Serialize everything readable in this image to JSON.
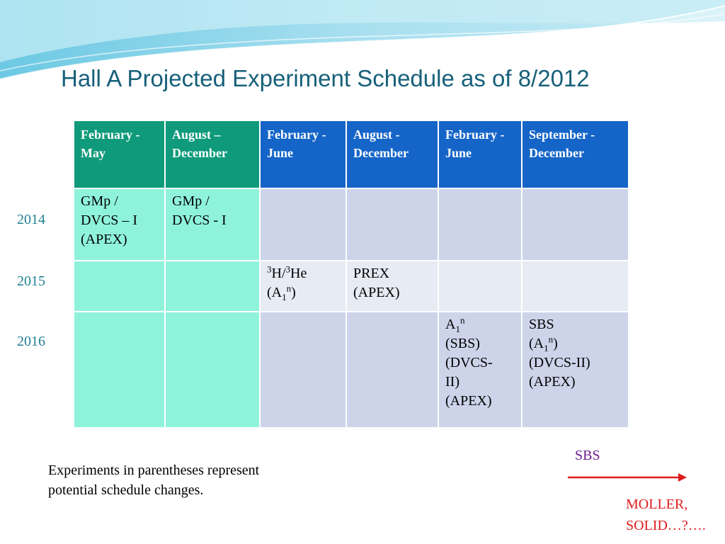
{
  "slide": {
    "title": "Hall A Projected Experiment Schedule as of 8/2012",
    "years": [
      "2014",
      "2015",
      "2016"
    ]
  },
  "table": {
    "headers": [
      "February - May",
      "August – December",
      "February - June",
      "August - December",
      "February - June",
      "September - December"
    ],
    "header_colors": [
      "#0f9a7b",
      "#0f9a7b",
      "#1565c8",
      "#1565c8",
      "#1565c8",
      "#1565c8"
    ],
    "rows": [
      {
        "year": "2014",
        "cells": [
          [
            "GMp /",
            "DVCS – I",
            "(APEX)"
          ],
          [
            "GMp /",
            "DVCS - I"
          ],
          [],
          [],
          [],
          []
        ]
      },
      {
        "year": "2015",
        "cells": [
          [],
          [],
          [
            "3H/3He",
            "(A1n)"
          ],
          [
            "PREX",
            "(APEX)"
          ],
          [],
          []
        ]
      },
      {
        "year": "2016",
        "cells": [
          [],
          [],
          [],
          [],
          [
            "A1n",
            "(SBS)",
            "(DVCS-II)",
            "(APEX)"
          ],
          [
            "SBS",
            "(A1n)",
            "(DVCS-II)",
            "(APEX)"
          ]
        ]
      }
    ]
  },
  "note": {
    "line1": "Experiments in parentheses represent",
    "line2": "potential schedule changes."
  },
  "timeline": {
    "sbs_label": "SBS",
    "next_line1": "MOLLER,",
    "next_line2": "SOLID…?…."
  },
  "colors": {
    "title": "#17607a",
    "year": "#1f7f91",
    "mint_cell": "#8ff3dc",
    "lavender_cell": "#cdd4ea",
    "light_cell": "#e7ebf4",
    "sbs_label": "#6e1b8c",
    "arrow": "#e01b1b"
  }
}
